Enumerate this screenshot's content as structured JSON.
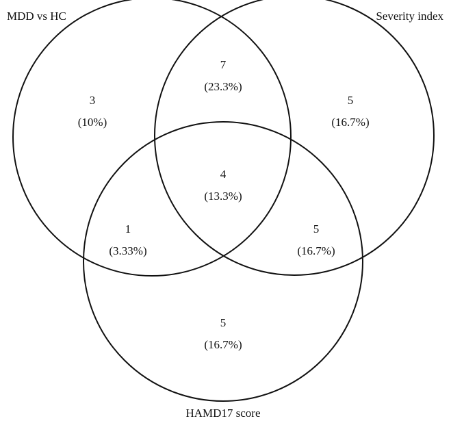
{
  "sets": [
    {
      "label": "MDD vs HC"
    },
    {
      "label": "Severity index"
    },
    {
      "label": "HAMD17 score"
    }
  ],
  "regions": [
    {
      "count": "3",
      "percent": "(10%)"
    },
    {
      "count": "7",
      "percent": "(23.3%)"
    },
    {
      "count": "5",
      "percent": "(16.7%)"
    },
    {
      "count": "4",
      "percent": "(13.3%)"
    },
    {
      "count": "1",
      "percent": "(3.33%)"
    },
    {
      "count": "5",
      "percent": "(16.7%)"
    },
    {
      "count": "5",
      "percent": "(16.7%)"
    }
  ]
}
